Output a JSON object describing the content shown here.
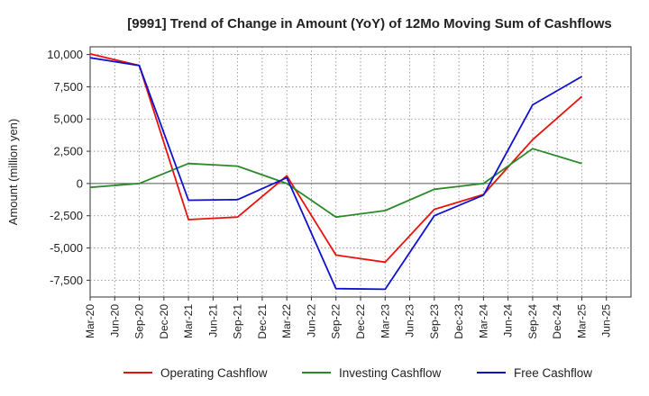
{
  "chart_data": {
    "type": "line",
    "title": "[9991]  Trend of Change in Amount (YoY) of 12Mo Moving Sum of Cashflows",
    "xlabel": "",
    "ylabel": "Amount (million yen)",
    "ylim": [
      -8800,
      10600
    ],
    "yticks": [
      10000,
      7500,
      5000,
      2500,
      0,
      -2500,
      -5000,
      -7500
    ],
    "ytick_labels": [
      "10,000",
      "7,500",
      "5,000",
      "2,500",
      "0",
      "-2,500",
      "-5,000",
      "-7,500"
    ],
    "categories": [
      "Mar-20",
      "Jun-20",
      "Sep-20",
      "Dec-20",
      "Mar-21",
      "Jun-21",
      "Sep-21",
      "Dec-21",
      "Mar-22",
      "Jun-22",
      "Sep-22",
      "Dec-22",
      "Mar-23",
      "Jun-23",
      "Sep-23",
      "Dec-23",
      "Mar-24",
      "Jun-24",
      "Sep-24",
      "Dec-24",
      "Mar-25",
      "Jun-25"
    ],
    "grid": true,
    "legend_position": "bottom",
    "series": [
      {
        "name": "Operating Cashflow",
        "color": "#e8120c",
        "points": [
          [
            0,
            10050
          ],
          [
            2,
            9150
          ],
          [
            4,
            -2800
          ],
          [
            6,
            -2600
          ],
          [
            8,
            600
          ],
          [
            10,
            -5550
          ],
          [
            12,
            -6100
          ],
          [
            14,
            -2000
          ],
          [
            16,
            -850
          ],
          [
            18,
            3400
          ],
          [
            20,
            6750
          ]
        ]
      },
      {
        "name": "Investing Cashflow",
        "color": "#2a8a2a",
        "points": [
          [
            0,
            -300
          ],
          [
            2,
            0
          ],
          [
            4,
            1550
          ],
          [
            6,
            1350
          ],
          [
            8,
            0
          ],
          [
            10,
            -2600
          ],
          [
            12,
            -2100
          ],
          [
            14,
            -450
          ],
          [
            16,
            0
          ],
          [
            18,
            2700
          ],
          [
            20,
            1550
          ]
        ]
      },
      {
        "name": "Free Cashflow",
        "color": "#1010d0",
        "points": [
          [
            0,
            9750
          ],
          [
            2,
            9150
          ],
          [
            4,
            -1300
          ],
          [
            6,
            -1250
          ],
          [
            8,
            450
          ],
          [
            10,
            -8150
          ],
          [
            12,
            -8200
          ],
          [
            14,
            -2500
          ],
          [
            16,
            -900
          ],
          [
            18,
            6100
          ],
          [
            20,
            8300
          ]
        ]
      }
    ]
  }
}
